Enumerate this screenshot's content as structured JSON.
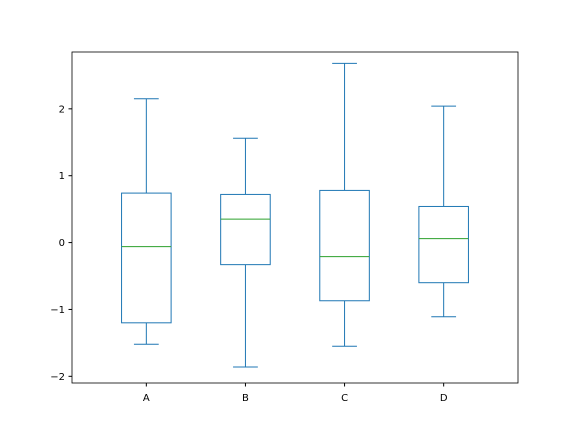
{
  "chart_data": {
    "type": "box",
    "title": "",
    "xlabel": "",
    "ylabel": "",
    "categories": [
      "A",
      "B",
      "C",
      "D"
    ],
    "boxes": [
      {
        "name": "A",
        "whislo": -1.52,
        "q1": -1.2,
        "med": -0.06,
        "q3": 0.74,
        "whishi": 2.15
      },
      {
        "name": "B",
        "whislo": -1.86,
        "q1": -0.33,
        "med": 0.35,
        "q3": 0.72,
        "whishi": 1.56
      },
      {
        "name": "C",
        "whislo": -1.55,
        "q1": -0.87,
        "med": -0.21,
        "q3": 0.78,
        "whishi": 2.68
      },
      {
        "name": "D",
        "whislo": -1.11,
        "q1": -0.6,
        "med": 0.06,
        "q3": 0.54,
        "whishi": 2.04
      }
    ],
    "ylim": [
      -2.1,
      2.85
    ],
    "yticks": [
      -2,
      -1,
      0,
      1,
      2
    ],
    "ytick_labels": [
      "−2",
      "−1",
      "0",
      "1",
      "2"
    ],
    "grid": false,
    "colors": {
      "box": "#1f77b4",
      "median": "#2ca02c",
      "axes": "#000000"
    }
  }
}
